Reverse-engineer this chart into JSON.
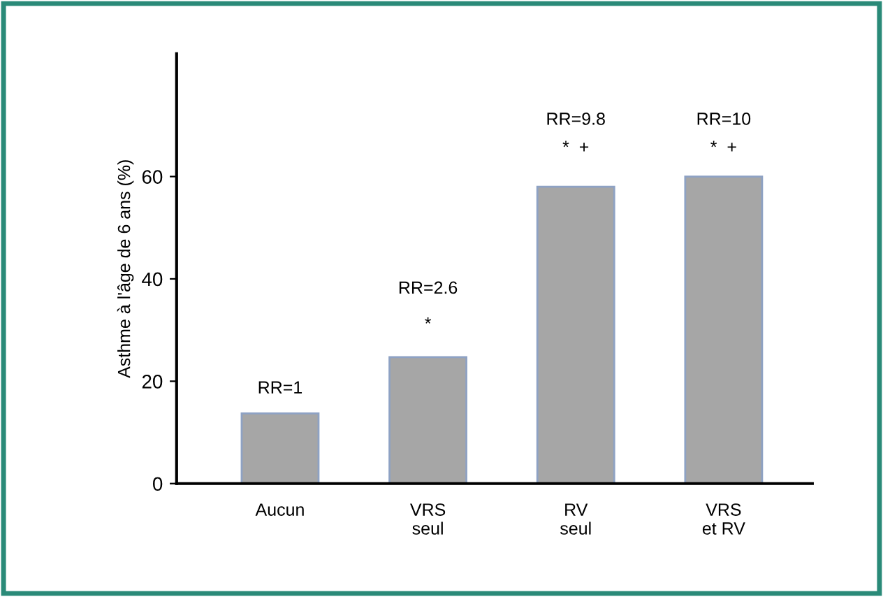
{
  "chart_data": {
    "type": "bar",
    "ylabel": "Asthme à l'âge de 6 ans (%)",
    "categories": [
      "Aucun",
      "VRS\nseul",
      "RV\nseul",
      "VRS\net RV"
    ],
    "values": [
      13.7,
      24.7,
      58,
      60
    ],
    "color": "#a6a6a6",
    "ylim": [
      0,
      84
    ],
    "yticks": [
      0,
      20,
      40,
      60
    ],
    "grid": false,
    "annotations": [
      "RR=1",
      "RR=2.6",
      "*",
      "RR=9.8",
      "*  +",
      "RR=10",
      "*  +"
    ]
  }
}
